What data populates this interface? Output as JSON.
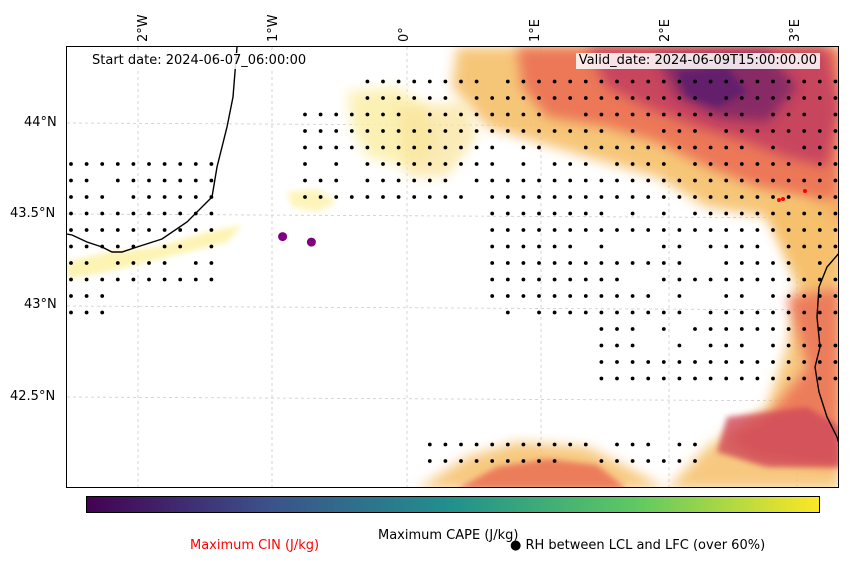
{
  "map": {
    "start_date": "Start date: 2024-06-07_06:00:00",
    "valid_date": "Valid_date: 2024-06-09T15:00:00.00",
    "lon_ticks": [
      "2°W",
      "1°W",
      "0°",
      "1°E",
      "2°E",
      "3°E"
    ],
    "lat_ticks": [
      "44°N",
      "43.5°N",
      "43°N",
      "42.5°N"
    ],
    "cin_markers": [
      {
        "lon": -0.95,
        "lat": 43.39
      },
      {
        "lon": -0.73,
        "lat": 43.36
      }
    ],
    "cin_color": "#800080",
    "red_dot_color": "#ff0000",
    "coast_color": "#000000"
  },
  "legend": {
    "cape_label": "Maximum CAPE (J/kg)",
    "cin_label": "Maximum CIN (J/kg)",
    "cin_label_color": "#ff0000",
    "rh_label": "RH between LCL and LFC (over 60%)",
    "rh_symbol": "●",
    "colorbar_colors": [
      "#440154",
      "#3b528b",
      "#21918c",
      "#5ec962",
      "#fde725"
    ]
  }
}
